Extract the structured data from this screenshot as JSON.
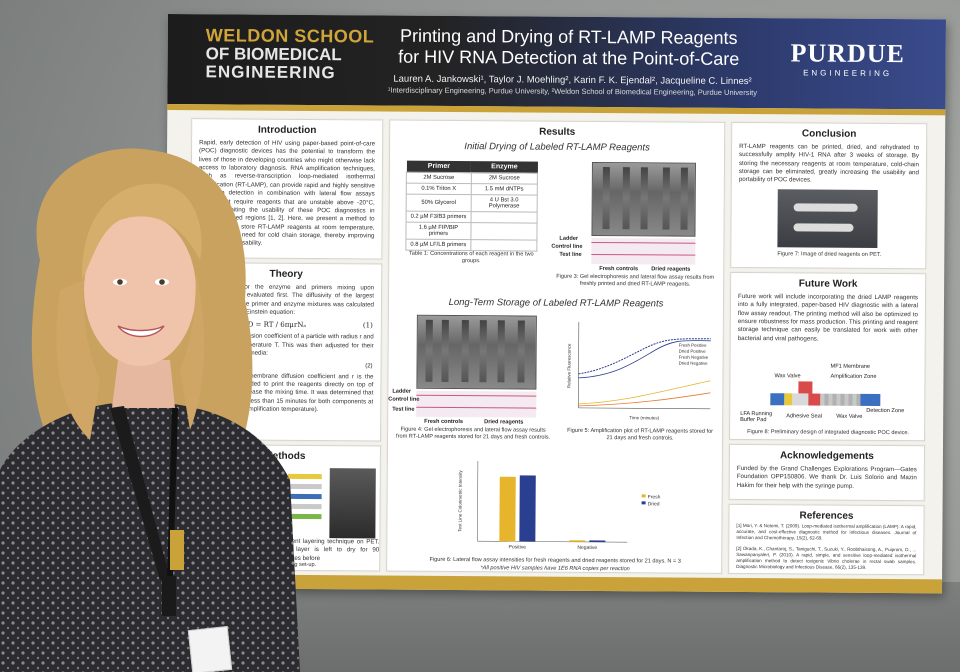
{
  "poster": {
    "school": {
      "line1": "WELDON SCHOOL",
      "line2": "OF BIOMEDICAL",
      "line3": "ENGINEERING"
    },
    "title_line1": "Printing and Drying of RT-LAMP Reagents",
    "title_line2": "for HIV RNA Detection at the Point-of-Care",
    "authors": "Lauren A. Jankowski¹, Taylor J. Moehling², Karin F. K. Ejendal², Jacqueline C. Linnes²",
    "affiliations": "¹Interdisciplinary Engineering, Purdue University, ²Weldon School of Biomedical Engineering, Purdue University",
    "logo": {
      "name": "PURDUE",
      "sub": "ENGINEERING"
    },
    "sections": {
      "introduction": {
        "heading": "Introduction",
        "text": "Rapid, early detection of HIV using paper-based point-of-care (POC) diagnostic devices has the potential to transform the lives of those in developing countries who might otherwise lack access to laboratory diagnosis. RNA amplification techniques, such as reverse-transcription loop-mediated isothermal amplification (RT-LAMP), can provide rapid and highly sensitive pathogen detection in combination with lateral flow assays (LFAs), but require reagents that are unstable above -20°C, severely limiting the usability of these POC diagnostics in resource-limited regions [1, 2]. Here, we present a method to print, dry, and store RT-LAMP reagents at room temperature, eliminating the need for cold chain storage, thereby improving portability and usability."
      },
      "theory": {
        "heading": "Theory",
        "text": "The potential for the enzyme and primers mixing upon rehydration was evaluated first. The diffusivity of the largest components in the primer and enzyme mixtures was calculated using the Stokes-Einstein equation:",
        "equation": "D = RT / 6πμrNₐ",
        "eq_number": "(1)",
        "text2": "where D is the diffusion coefficient of a particle with radius r and viscosity μ at temperature T. This was then adjusted for their diffusion in porous media:",
        "eq2_number": "(2)",
        "text3": "where Dₘ is the membrane diffusion coefficient and r is the radius. It was decided to print the reagents directly on top of each other to decrease the mixing time. It was determined that mixing would take less than 15 minutes for both components at 65°C (isothermal amplification temperature)."
      },
      "methods": {
        "heading": "Methods",
        "text": "reagent layering technique on PET. First layer is left to dry for 90 minutes before",
        "caption": "printing set-up."
      },
      "results": {
        "heading": "Results",
        "sub1": "Initial Drying of Labeled RT-LAMP Reagents",
        "table": {
          "headers": [
            "Primer",
            "Enzyme"
          ],
          "rows": [
            [
              "2M Sucrose",
              "2M Sucrose"
            ],
            [
              "0.1% Triton X",
              "1.5 mM dNTPs"
            ],
            [
              "50% Glycerol",
              "4 U Bst 3.0 Polymerase"
            ],
            [
              "0.2 µM F3/B3 primers",
              ""
            ],
            [
              "1.6 µM FIP/BIP primers",
              ""
            ],
            [
              "0.8 µM LF/LB primers",
              ""
            ]
          ]
        },
        "table_caption": "Table 1: Concentrations of each reagent in the two groups.",
        "gel_labels": [
          "Ladder",
          "Control line",
          "Test line"
        ],
        "gel_groups": [
          "Fresh controls",
          "Dried reagents"
        ],
        "fig3_caption": "Figure 3: Gel electrophoresis and lateral flow assay results from freshly printed and dried RT-LAMP reagents.",
        "sub2": "Long-Term Storage of Labeled RT-LAMP Reagents",
        "fig4_caption": "Figure 4: Gel electrophoresis and lateral flow assay results from RT-LAMP reagents stored for 21 days and fresh controls.",
        "fig5_caption": "Figure 5: Amplification plot of RT-LAMP reagents stored for 21 days and fresh controls.",
        "fig5_legend": [
          "Fresh Positive",
          "Dried Positive",
          "Fresh Negative",
          "Dried Negative"
        ],
        "fig5_xlabel": "Time (minutes)",
        "fig5_ylabel": "Relative Fluorescence",
        "fig6_caption": "Figure 6: Lateral flow assay intensities for fresh reagents and dried reagents stored for 21 days. N = 3",
        "fig6_ylabel": "Test Line Colorimetric Intensity",
        "fig6_legend": [
          "Fresh",
          "Dried"
        ],
        "fig6_categories": [
          "Positive",
          "Negative"
        ],
        "footnote": "*All positive HIV samples have 1E6 RNA copies per reaction"
      },
      "conclusion": {
        "heading": "Conclusion",
        "text": "RT-LAMP reagents can be printed, dried, and rehydrated to successfully amplify HIV-1 RNA after 3 weeks of storage. By storing the necessary reagents at room temperature, cold-chain storage can be eliminated, greatly increasing the usability and portability of POC devices.",
        "fig7_caption": "Figure 7: Image of dried reagents on PET."
      },
      "future": {
        "heading": "Future Work",
        "text": "Future work will include incorporating the dried LAMP reagents into a fully integrated, paper-based HIV diagnostic with a lateral flow assay readout. The printing method will also be optimized to ensure robustness for mass production. This printing and reagent storage technique can easily be translated for work with other bacterial and viral pathogens.",
        "labels": [
          "MF1 Membrane",
          "Wax Valve",
          "Amplification Zone",
          "LFA Running Buffer Pad",
          "Adhesive Seal",
          "Wax Valve",
          "Detection Zone"
        ],
        "fig8_caption": "Figure 8: Preliminary design of integrated diagnostic POC device."
      },
      "acknowledgements": {
        "heading": "Acknowledgements",
        "text": "Funded by the Grand Challenges Explorations Program—Gates Foundation OPP150806. We thank Dr. Luis Solorio and Mazin Hakim for their help with the syringe pump."
      },
      "references": {
        "heading": "References",
        "ref1": "[1] Mori, Y. & Notomi, T. (2009). Loop-mediated isothermal amplification (LAMP): A rapid, accurate, and cost-effective diagnostic method for infectious diseases. Journal of Infection and Chemotherapy, 15(2), 62-69.",
        "ref2": "[2] Okada, K., Chantaroj, S., Taniguchi, T., Suzuki, Y., Roobthaisong, A., Puiprom, O., ... Sawanpanyalert, P. (2010). A rapid, simple, and sensitive loop-mediated isothermal amplification method to detect toxigenic Vibrio cholerae in rectal swab samples. Diagnostic Microbiology and Infectious Disease, 66(2), 135-139."
      }
    }
  },
  "chart_data": {
    "type": "bar",
    "categories": [
      "Positive",
      "Negative"
    ],
    "series": [
      {
        "name": "Fresh",
        "values": [
          0.85,
          0.02
        ]
      },
      {
        "name": "Dried",
        "values": [
          0.87,
          0.02
        ]
      }
    ],
    "ylabel": "Test Line Colorimetric Intensity",
    "colors": {
      "Fresh": "#e6b52c",
      "Dried": "#2a3f8f"
    }
  }
}
